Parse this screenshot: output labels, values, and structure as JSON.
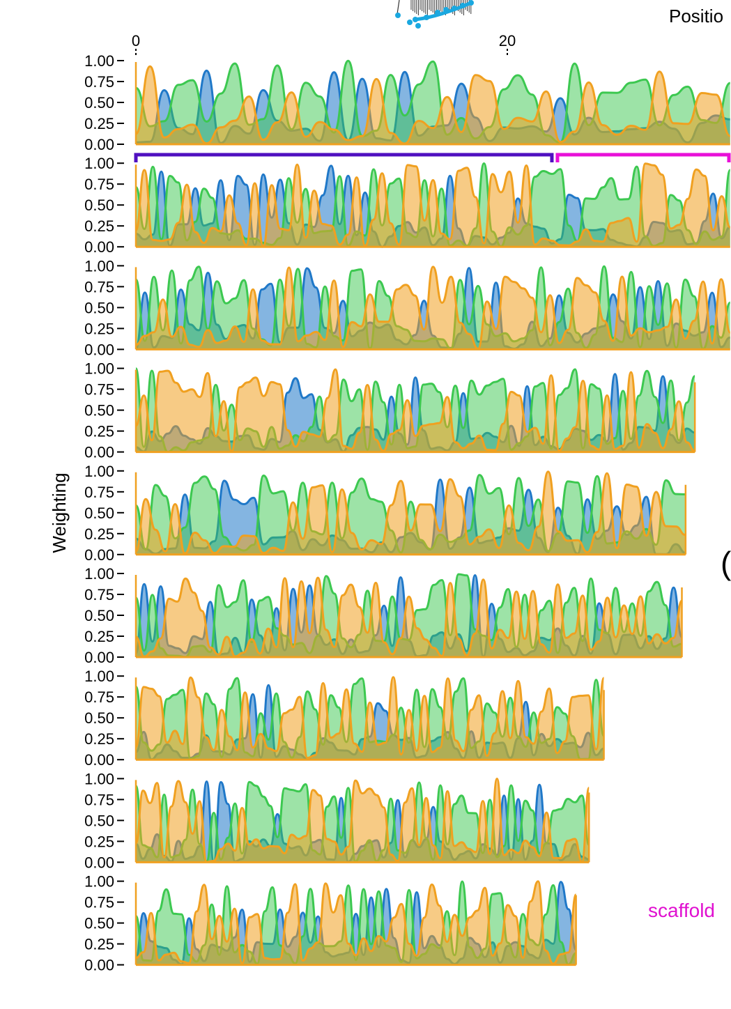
{
  "figure": {
    "y_axis_title": "Weighting",
    "position_label": "Positio",
    "scaffold_label": "scaffold",
    "paren_glyph": "(",
    "x_ticks": [
      "0",
      "20"
    ],
    "colors": {
      "blue": "#1f78c8",
      "green": "#3cc850",
      "orange": "#f0a020",
      "bracket_1": "#5010c0",
      "bracket_2": "#e810d8",
      "tree_dots": "#1aa8e0",
      "scaffold_text": "#e010d0"
    }
  },
  "chart_data": {
    "type": "area",
    "title": "",
    "xlabel": "",
    "ylabel": "Weighting",
    "ylim": [
      0,
      1
    ],
    "yticks": [
      "1.00",
      "0.75",
      "0.50",
      "0.25",
      "0.00"
    ],
    "x_axis_ticks": [
      0,
      20
    ],
    "legend": "none",
    "grid": false,
    "series_colors": [
      "#1f78c8",
      "#3cc850",
      "#f0a020"
    ],
    "panels": [
      {
        "x_end": 32,
        "seed": 11,
        "segments": 42
      },
      {
        "x_end": 32,
        "seed": 23,
        "segments": 70
      },
      {
        "x_end": 32,
        "seed": 37,
        "segments": 66
      },
      {
        "x_end": 30.1,
        "seed": 41,
        "segments": 70
      },
      {
        "x_end": 29.6,
        "seed": 53,
        "segments": 56
      },
      {
        "x_end": 29.4,
        "seed": 67,
        "segments": 66
      },
      {
        "x_end": 25.2,
        "seed": 71,
        "segments": 60
      },
      {
        "x_end": 24.4,
        "seed": 83,
        "segments": 64
      },
      {
        "x_end": 23.7,
        "seed": 97,
        "segments": 58
      }
    ],
    "brackets": [
      {
        "x_start": 0,
        "x_end": 22.4,
        "color": "#5010c0"
      },
      {
        "x_start": 22.7,
        "x_end": 32,
        "color": "#e810d8"
      }
    ]
  }
}
